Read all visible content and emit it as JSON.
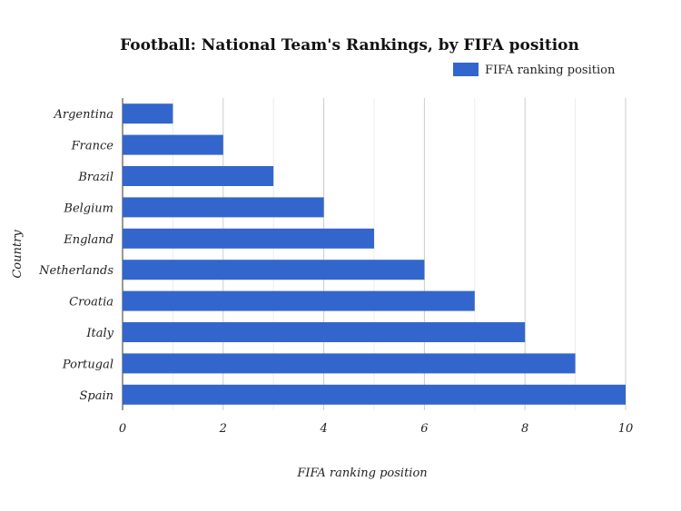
{
  "chart_data": {
    "type": "bar",
    "orientation": "horizontal",
    "title": "Football: National Team's Rankings, by FIFA position",
    "xlabel": "FIFA ranking position",
    "ylabel": "Country",
    "categories": [
      "Argentina",
      "France",
      "Brazil",
      "Belgium",
      "England",
      "Netherlands",
      "Croatia",
      "Italy",
      "Portugal",
      "Spain"
    ],
    "series": [
      {
        "name": "FIFA ranking position",
        "values": [
          1,
          2,
          3,
          4,
          5,
          6,
          7,
          8,
          9,
          10
        ],
        "color": "#3366cc"
      }
    ],
    "xlim": [
      0,
      10
    ],
    "xticks": [
      "0",
      "2",
      "4",
      "6",
      "8",
      "10"
    ],
    "grid": true,
    "legend": "top-right"
  }
}
